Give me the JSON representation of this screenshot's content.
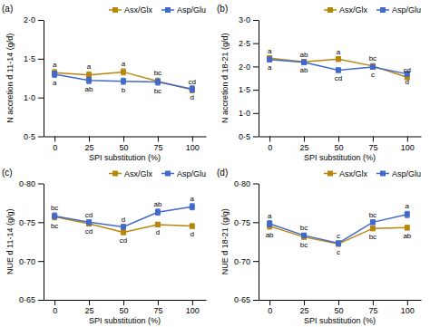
{
  "chart_data": [
    {
      "type": "line",
      "title": "(a)",
      "xlabel": "SPI substitution (%)",
      "ylabel": "N accretion d 11-14 (g/d)",
      "x": [
        0,
        25,
        50,
        75,
        100
      ],
      "xlim": [
        -8,
        110
      ],
      "xticks": [
        0,
        25,
        50,
        75,
        100
      ],
      "ylim": [
        0.5,
        2.0
      ],
      "yticks": [
        {
          "value": 0.5,
          "label": "0·5"
        },
        {
          "value": 1.0,
          "label": "1·0"
        },
        {
          "value": 1.5,
          "label": "1·5"
        },
        {
          "value": 2.0,
          "label": "2·0"
        }
      ],
      "grid": false,
      "legend": "upper right",
      "series": [
        {
          "name": "Asx/Glx",
          "color": "#B8860B",
          "marker": "square",
          "values": [
            1.32,
            1.29,
            1.33,
            1.21,
            1.1
          ],
          "errors": [
            0.04,
            0.04,
            0.04,
            0.04,
            0.04
          ],
          "annotations": [
            "a",
            "a",
            "a",
            "bc",
            "cd"
          ]
        },
        {
          "name": "Asp/Glu",
          "color": "#4169CD",
          "marker": "square",
          "values": [
            1.3,
            1.22,
            1.21,
            1.2,
            1.11
          ],
          "errors": [
            0.04,
            0.04,
            0.04,
            0.04,
            0.04
          ],
          "annotations": [
            "a",
            "ab",
            "b",
            "bc",
            "d"
          ]
        }
      ]
    },
    {
      "type": "line",
      "title": "(b)",
      "xlabel": "SPI substitution (%)",
      "ylabel": "N accretion d 18-21 (g/d)",
      "x": [
        0,
        25,
        50,
        75,
        100
      ],
      "xlim": [
        -8,
        110
      ],
      "xticks": [
        0,
        25,
        50,
        75,
        100
      ],
      "ylim": [
        0.5,
        3.0
      ],
      "yticks": [
        {
          "value": 0.5,
          "label": "0·5"
        },
        {
          "value": 1.0,
          "label": "1·0"
        },
        {
          "value": 1.5,
          "label": "1·5"
        },
        {
          "value": 2.0,
          "label": "2·0"
        },
        {
          "value": 2.5,
          "label": "2·5"
        },
        {
          "value": 3.0,
          "label": "3·0"
        }
      ],
      "grid": false,
      "legend": "upper right",
      "series": [
        {
          "name": "Asx/Glx",
          "color": "#B8860B",
          "marker": "square",
          "values": [
            2.18,
            2.1,
            2.16,
            2.01,
            1.77
          ],
          "errors": [
            0.05,
            0.05,
            0.05,
            0.05,
            0.05
          ],
          "annotations": [
            "a",
            "ab",
            "a",
            "bc",
            "cd"
          ]
        },
        {
          "name": "Asp/Glu",
          "color": "#4169CD",
          "marker": "square",
          "values": [
            2.15,
            2.09,
            1.92,
            1.99,
            1.84
          ],
          "errors": [
            0.05,
            0.05,
            0.05,
            0.05,
            0.05
          ],
          "annotations": [
            "a",
            "ab",
            "cd",
            "c",
            "d"
          ]
        }
      ]
    },
    {
      "type": "line",
      "title": "(c)",
      "xlabel": "SPI substitution (%)",
      "ylabel": "NUE d 11-14 (g/g)",
      "x": [
        0,
        25,
        50,
        75,
        100
      ],
      "xlim": [
        -8,
        110
      ],
      "xticks": [
        0,
        25,
        50,
        75,
        100
      ],
      "ylim": [
        0.65,
        0.8
      ],
      "yticks": [
        {
          "value": 0.65,
          "label": "0·65"
        },
        {
          "value": 0.7,
          "label": "0·70"
        },
        {
          "value": 0.75,
          "label": "0·75"
        },
        {
          "value": 0.8,
          "label": "0·80"
        }
      ],
      "grid": false,
      "legend": "upper right",
      "series": [
        {
          "name": "Asx/Glx",
          "color": "#B8860B",
          "marker": "square",
          "values": [
            0.757,
            0.748,
            0.737,
            0.747,
            0.745
          ],
          "errors": [
            0.004,
            0.003,
            0.003,
            0.003,
            0.003
          ],
          "annotations": [
            "bc",
            "cd",
            "cd",
            "d",
            "d"
          ]
        },
        {
          "name": "Asp/Glu",
          "color": "#4169CD",
          "marker": "square",
          "values": [
            0.758,
            0.75,
            0.744,
            0.763,
            0.77
          ],
          "errors": [
            0.004,
            0.003,
            0.003,
            0.004,
            0.004
          ],
          "annotations": [
            "bc",
            "cd",
            "d",
            "ab",
            "a"
          ]
        }
      ]
    },
    {
      "type": "line",
      "title": "(d)",
      "xlabel": "SPI substitution (%)",
      "ylabel": "NUE d 18-21 (g/g)",
      "x": [
        0,
        25,
        50,
        75,
        100
      ],
      "xlim": [
        -8,
        110
      ],
      "xticks": [
        0,
        25,
        50,
        75,
        100
      ],
      "ylim": [
        0.65,
        0.8
      ],
      "yticks": [
        {
          "value": 0.65,
          "label": "0·65"
        },
        {
          "value": 0.7,
          "label": "0·70"
        },
        {
          "value": 0.75,
          "label": "0·75"
        },
        {
          "value": 0.8,
          "label": "0·80"
        }
      ],
      "grid": false,
      "legend": "upper right",
      "series": [
        {
          "name": "Asx/Glx",
          "color": "#B8860B",
          "marker": "square",
          "values": [
            0.745,
            0.731,
            0.722,
            0.742,
            0.743
          ],
          "errors": [
            0.004,
            0.003,
            0.003,
            0.003,
            0.003
          ],
          "annotations": [
            "ab",
            "bc",
            "c",
            "bc",
            "ab"
          ]
        },
        {
          "name": "Asp/Glu",
          "color": "#4169CD",
          "marker": "square",
          "values": [
            0.748,
            0.733,
            0.723,
            0.75,
            0.76
          ],
          "errors": [
            0.004,
            0.003,
            0.003,
            0.003,
            0.004
          ],
          "annotations": [
            "a",
            "bc",
            "c",
            "bc",
            "a"
          ]
        }
      ]
    }
  ]
}
